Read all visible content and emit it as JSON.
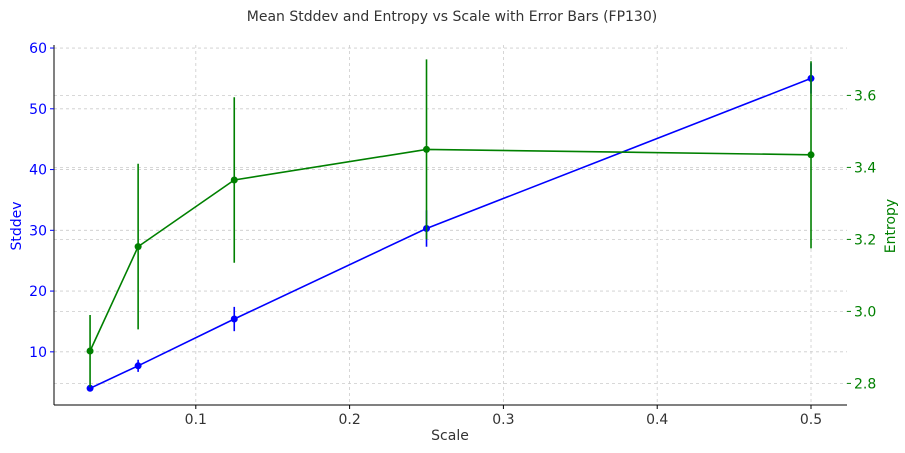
{
  "chart_data": {
    "type": "line",
    "title": "Mean Stddev and Entropy vs Scale with Error Bars (FP130)",
    "xlabel": "Scale",
    "ylabel_left": "Stddev",
    "ylabel_right": "Entropy",
    "x": [
      0.03125,
      0.0625,
      0.125,
      0.25,
      0.5
    ],
    "xlim": [
      0.0078,
      0.5234
    ],
    "x_ticks": [
      0.1,
      0.2,
      0.3,
      0.4,
      0.5
    ],
    "x_tick_labels": [
      "0.1",
      "0.2",
      "0.3",
      "0.4",
      "0.5"
    ],
    "ylim_left": [
      1.25,
      60.5
    ],
    "y_ticks_left": [
      10,
      20,
      30,
      40,
      50,
      60
    ],
    "y_tick_labels_left": [
      "10",
      "20",
      "30",
      "40",
      "50",
      "60"
    ],
    "ylim_right": [
      2.74,
      3.74
    ],
    "y_ticks_right": [
      2.8,
      3.0,
      3.2,
      3.4,
      3.6
    ],
    "y_tick_labels_right": [
      "2.8",
      "3.0",
      "3.2",
      "3.4",
      "3.6"
    ],
    "grid": true,
    "series": [
      {
        "axis": "left",
        "color": "#0000ff",
        "values": [
          4.0,
          7.7,
          15.4,
          30.3,
          55.0
        ],
        "errors": [
          0.3,
          1.0,
          2.0,
          3.0,
          2.5
        ]
      },
      {
        "axis": "right",
        "color": "#008000",
        "values": [
          2.89,
          3.18,
          3.365,
          3.45,
          3.435
        ],
        "errors": [
          0.1,
          0.23,
          0.23,
          0.25,
          0.26
        ]
      }
    ],
    "colors": {
      "left_axis": "#0000ff",
      "right_axis": "#008000",
      "axis_line": "#000000",
      "text": "#333333"
    }
  }
}
